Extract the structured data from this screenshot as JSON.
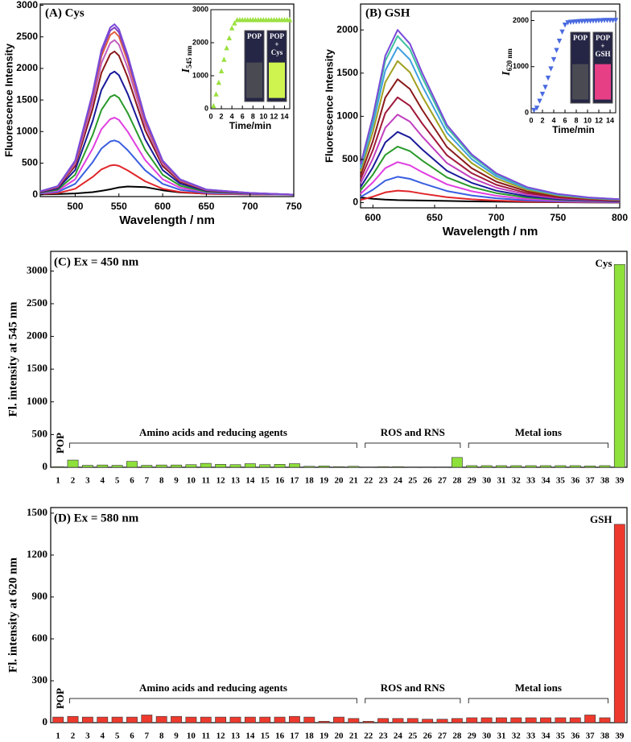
{
  "chart_data": [
    {
      "type": "line",
      "title": "(A) Cys",
      "x_label": "Wavelength / nm",
      "y_label": "Fluorescence Intensity",
      "xlim": [
        460,
        750
      ],
      "xticks": [
        500,
        550,
        600,
        650,
        700,
        750
      ],
      "ylim": [
        -30,
        3020
      ],
      "yticks": [
        0,
        500,
        1000,
        1500,
        2000,
        2500,
        3000
      ],
      "x": [
        460,
        480,
        500,
        520,
        530,
        540,
        545,
        550,
        560,
        580,
        600,
        620,
        650,
        700,
        750
      ],
      "series": [
        {
          "color": "#000000",
          "values": [
            5,
            10,
            20,
            40,
            60,
            85,
            100,
            115,
            130,
            120,
            70,
            35,
            15,
            5,
            0
          ]
        },
        {
          "color": "#e0262a",
          "values": [
            9,
            24,
            94,
            282,
            400,
            461,
            470,
            456,
            385,
            212,
            94,
            42,
            14,
            5,
            0
          ]
        },
        {
          "color": "#3a5fe0",
          "values": [
            17,
            43,
            172,
            516,
            731,
            843,
            860,
            834,
            705,
            387,
            172,
            77,
            26,
            9,
            0
          ]
        },
        {
          "color": "#e040e0",
          "values": [
            24,
            61,
            244,
            732,
            1037,
            1196,
            1220,
            1183,
            1000,
            549,
            244,
            110,
            37,
            12,
            0
          ]
        },
        {
          "color": "#2a9a2a",
          "values": [
            32,
            79,
            316,
            948,
            1343,
            1548,
            1580,
            1533,
            1296,
            711,
            316,
            142,
            47,
            16,
            0
          ]
        },
        {
          "color": "#1a1a9a",
          "values": [
            39,
            98,
            390,
            1170,
            1658,
            1911,
            1950,
            1892,
            1599,
            878,
            390,
            176,
            59,
            20,
            0
          ]
        },
        {
          "color": "#8a1a1a",
          "values": [
            45,
            114,
            454,
            1362,
            1930,
            2225,
            2270,
            2202,
            1861,
            1022,
            454,
            204,
            68,
            23,
            0
          ]
        },
        {
          "color": "#c060c0",
          "values": [
            49,
            123,
            490,
            1470,
            2083,
            2401,
            2450,
            2377,
            2009,
            1103,
            490,
            221,
            74,
            25,
            0
          ]
        },
        {
          "color": "#e06040",
          "values": [
            52,
            129,
            516,
            1548,
            2193,
            2528,
            2580,
            2503,
            2116,
            1161,
            516,
            232,
            77,
            26,
            0
          ]
        },
        {
          "color": "#8040c0",
          "values": [
            53,
            133,
            530,
            1590,
            2253,
            2597,
            2650,
            2571,
            2173,
            1193,
            530,
            239,
            80,
            27,
            0
          ]
        },
        {
          "color": "#7a4ad8",
          "values": [
            54,
            135,
            540,
            1620,
            2295,
            2646,
            2700,
            2619,
            2214,
            1215,
            540,
            243,
            81,
            27,
            0
          ]
        }
      ]
    },
    {
      "type": "scatter",
      "x_label": "Time/min",
      "y_label": "I",
      "y_label_sub": "545 nm",
      "xlim": [
        0,
        15
      ],
      "xticks": [
        0,
        2,
        4,
        6,
        8,
        10,
        12,
        14
      ],
      "ylim": [
        0,
        3000
      ],
      "yticks": [
        0,
        1000,
        2000,
        3000
      ],
      "marker": "triangle-up",
      "color": "#9be040",
      "x": [
        0.5,
        1,
        1.5,
        2,
        2.5,
        3,
        3.5,
        4,
        4.5,
        5,
        5.5,
        6,
        6.5,
        7,
        7.5,
        8,
        8.5,
        9,
        9.5,
        10,
        10.5,
        11,
        11.5,
        12,
        12.5,
        13,
        13.5,
        14,
        14.5,
        15
      ],
      "values": [
        100,
        450,
        800,
        1150,
        1500,
        1850,
        2150,
        2450,
        2600,
        2700,
        2700,
        2700,
        2700,
        2700,
        2700,
        2700,
        2700,
        2700,
        2700,
        2700,
        2700,
        2700,
        2700,
        2700,
        2700,
        2700,
        2700,
        2700,
        2700,
        2700
      ],
      "vials": [
        {
          "lines": [
            "POP"
          ]
        },
        {
          "lines": [
            "POP",
            "+",
            "Cys"
          ]
        }
      ]
    },
    {
      "type": "line",
      "title": "(B) GSH",
      "x_label": "Wavelength / nm",
      "y_label": "Fluorescence Intensity",
      "xlim": [
        590,
        800
      ],
      "xticks": [
        600,
        650,
        700,
        750,
        800
      ],
      "ylim": [
        -60,
        2300
      ],
      "yticks": [
        0,
        500,
        1000,
        1500,
        2000
      ],
      "x": [
        590,
        600,
        610,
        620,
        630,
        640,
        660,
        680,
        700,
        725,
        750,
        775,
        800
      ],
      "series": [
        {
          "color": "#000000",
          "values": [
            60,
            45,
            35,
            30,
            28,
            25,
            20,
            15,
            12,
            8,
            5,
            3,
            2
          ]
        },
        {
          "color": "#e0262a",
          "values": [
            31,
            70,
            119,
            140,
            129,
            105,
            63,
            39,
            24,
            13,
            7,
            4,
            3
          ]
        },
        {
          "color": "#3a5fe0",
          "values": [
            66,
            150,
            255,
            300,
            276,
            225,
            135,
            84,
            51,
            27,
            15,
            9,
            6
          ]
        },
        {
          "color": "#e040e0",
          "values": [
            103,
            235,
            400,
            470,
            432,
            353,
            212,
            132,
            80,
            42,
            24,
            14,
            9
          ]
        },
        {
          "color": "#2a9a2a",
          "values": [
            143,
            325,
            553,
            650,
            598,
            488,
            293,
            182,
            111,
            59,
            33,
            20,
            13
          ]
        },
        {
          "color": "#1a1a9a",
          "values": [
            180,
            410,
            697,
            820,
            754,
            615,
            369,
            230,
            139,
            74,
            41,
            25,
            16
          ]
        },
        {
          "color": "#c040c0",
          "values": [
            224,
            510,
            867,
            1020,
            938,
            765,
            459,
            286,
            173,
            92,
            51,
            31,
            20
          ]
        },
        {
          "color": "#a01a3a",
          "values": [
            268,
            610,
            1037,
            1220,
            1122,
            915,
            549,
            342,
            207,
            110,
            61,
            37,
            24
          ]
        },
        {
          "color": "#8a1a1a",
          "values": [
            315,
            715,
            1216,
            1430,
            1316,
            1073,
            644,
            400,
            243,
            129,
            72,
            43,
            29
          ]
        },
        {
          "color": "#a0a020",
          "values": [
            361,
            820,
            1394,
            1640,
            1509,
            1230,
            738,
            459,
            279,
            148,
            82,
            49,
            33
          ]
        },
        {
          "color": "#40a0e0",
          "values": [
            396,
            900,
            1530,
            1800,
            1656,
            1350,
            810,
            504,
            306,
            162,
            90,
            54,
            36
          ]
        },
        {
          "color": "#40c0a0",
          "values": [
            425,
            965,
            1641,
            1930,
            1776,
            1448,
            869,
            540,
            328,
            174,
            97,
            58,
            39
          ]
        },
        {
          "color": "#7a4ad8",
          "values": [
            440,
            1000,
            1700,
            2000,
            1840,
            1500,
            900,
            560,
            340,
            180,
            100,
            60,
            40
          ]
        }
      ]
    },
    {
      "type": "scatter",
      "x_label": "Time/min",
      "y_label": "I",
      "y_label_sub": "620 nm",
      "xlim": [
        0,
        15
      ],
      "xticks": [
        0,
        2,
        4,
        6,
        8,
        10,
        12,
        14
      ],
      "ylim": [
        0,
        2200
      ],
      "yticks": [
        0,
        1000,
        2000
      ],
      "marker": "triangle-down",
      "color": "#4a6ae0",
      "x": [
        0.5,
        1,
        1.5,
        2,
        2.5,
        3,
        3.5,
        4,
        4.5,
        5,
        5.5,
        6,
        6.5,
        7,
        7.5,
        8,
        8.5,
        9,
        9.5,
        10,
        10.5,
        11,
        11.5,
        12,
        12.5,
        13,
        13.5,
        14,
        14.5,
        15
      ],
      "values": [
        50,
        100,
        250,
        400,
        550,
        750,
        950,
        1150,
        1350,
        1550,
        1750,
        1900,
        1950,
        1960,
        1965,
        1970,
        1975,
        1980,
        1980,
        1985,
        1985,
        1990,
        1990,
        1995,
        1995,
        2000,
        2000,
        2000,
        2000,
        2000
      ],
      "vials": [
        {
          "lines": [
            "POP"
          ]
        },
        {
          "lines": [
            "POP",
            "+",
            "GSH"
          ]
        }
      ]
    },
    {
      "type": "bar",
      "title": "(C) Ex = 450 nm",
      "y_label": "Fl. intensity at 545 nm",
      "color": "#8ee03a",
      "ylim": [
        0,
        3300
      ],
      "yticks": [
        0,
        500,
        1000,
        1500,
        2000,
        2500,
        3000
      ],
      "categories": [
        "1",
        "2",
        "3",
        "4",
        "5",
        "6",
        "7",
        "8",
        "9",
        "10",
        "11",
        "12",
        "13",
        "14",
        "15",
        "16",
        "17",
        "18",
        "19",
        "20",
        "21",
        "22",
        "23",
        "24",
        "25",
        "26",
        "27",
        "28",
        "29",
        "30",
        "31",
        "32",
        "33",
        "34",
        "35",
        "36",
        "37",
        "38",
        "39"
      ],
      "values": [
        10,
        110,
        30,
        35,
        30,
        90,
        30,
        35,
        35,
        40,
        60,
        45,
        40,
        55,
        40,
        45,
        55,
        15,
        20,
        10,
        15,
        5,
        10,
        10,
        5,
        5,
        5,
        150,
        25,
        25,
        25,
        25,
        25,
        25,
        25,
        25,
        20,
        25,
        3100
      ],
      "annotations": [
        "POP",
        "Amino acids and reducing agents",
        "ROS and RNS",
        "Metal ions",
        "Cys"
      ]
    },
    {
      "type": "bar",
      "title": "(D) Ex = 580 nm",
      "y_label": "Fl. intensity at 620 nm",
      "color": "#ee3a2e",
      "ylim": [
        0,
        1540
      ],
      "yticks": [
        0,
        300,
        600,
        900,
        1200,
        1500
      ],
      "categories": [
        "1",
        "2",
        "3",
        "4",
        "5",
        "6",
        "7",
        "8",
        "9",
        "10",
        "11",
        "12",
        "13",
        "14",
        "15",
        "16",
        "17",
        "18",
        "19",
        "20",
        "21",
        "22",
        "23",
        "24",
        "25",
        "26",
        "27",
        "28",
        "29",
        "30",
        "31",
        "32",
        "33",
        "34",
        "35",
        "36",
        "37",
        "38",
        "39"
      ],
      "values": [
        40,
        45,
        40,
        40,
        40,
        40,
        55,
        45,
        45,
        40,
        40,
        40,
        40,
        40,
        40,
        40,
        45,
        40,
        10,
        40,
        30,
        10,
        30,
        30,
        30,
        25,
        25,
        30,
        35,
        35,
        35,
        35,
        35,
        35,
        35,
        35,
        55,
        35,
        1420
      ],
      "annotations": [
        "POP",
        "Amino acids and reducing agents",
        "ROS and RNS",
        "Metal ions",
        "GSH"
      ]
    }
  ]
}
